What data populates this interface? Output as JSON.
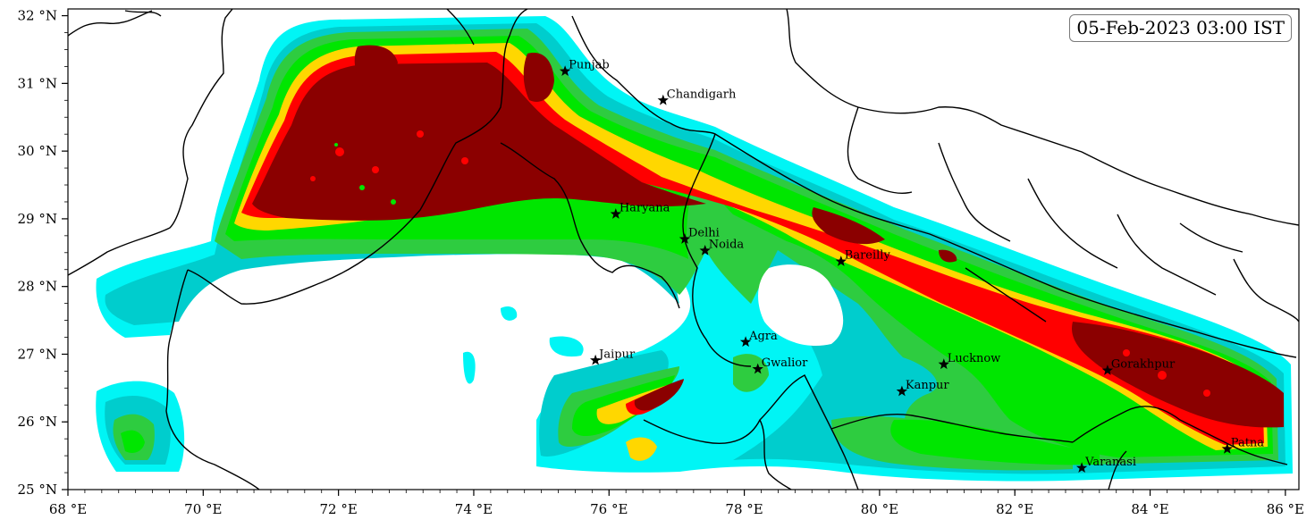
{
  "map": {
    "timestamp": "05-Feb-2023 03:00 IST",
    "extent": {
      "lon_min": 68.0,
      "lon_max": 86.2,
      "lat_min": 25.0,
      "lat_max": 32.1
    },
    "x_ticks": [
      {
        "value": 68,
        "label": "68 °E"
      },
      {
        "value": 70,
        "label": "70 °E"
      },
      {
        "value": 72,
        "label": "72 °E"
      },
      {
        "value": 74,
        "label": "74 °E"
      },
      {
        "value": 76,
        "label": "76 °E"
      },
      {
        "value": 78,
        "label": "78 °E"
      },
      {
        "value": 80,
        "label": "80 °E"
      },
      {
        "value": 82,
        "label": "82 °E"
      },
      {
        "value": 84,
        "label": "84 °E"
      },
      {
        "value": 86,
        "label": "86 °E"
      }
    ],
    "y_ticks": [
      {
        "value": 25,
        "label": "25 °N"
      },
      {
        "value": 26,
        "label": "26 °N"
      },
      {
        "value": 27,
        "label": "27 °N"
      },
      {
        "value": 28,
        "label": "28 °N"
      },
      {
        "value": 29,
        "label": "29 °N"
      },
      {
        "value": 30,
        "label": "30 °N"
      },
      {
        "value": 31,
        "label": "31 °N"
      },
      {
        "value": 32,
        "label": "32 °N"
      }
    ],
    "shade_colors": {
      "level1": "#00f5f5",
      "level2": "#00cdcd",
      "level3": "#2ecc40",
      "level4": "#00e600",
      "level5": "#ffd700",
      "level6": "#ff0000",
      "level7": "#8b0000"
    },
    "cities": [
      {
        "name": "Punjab",
        "lon": 75.35,
        "lat": 31.18
      },
      {
        "name": "Chandigarh",
        "lon": 76.8,
        "lat": 30.75
      },
      {
        "name": "Haryana",
        "lon": 76.1,
        "lat": 29.07
      },
      {
        "name": "Delhi",
        "lon": 77.12,
        "lat": 28.7
      },
      {
        "name": "Noida",
        "lon": 77.42,
        "lat": 28.53
      },
      {
        "name": "Bareilly",
        "lon": 79.43,
        "lat": 28.37
      },
      {
        "name": "Agra",
        "lon": 78.02,
        "lat": 27.18
      },
      {
        "name": "Jaipur",
        "lon": 75.8,
        "lat": 26.91
      },
      {
        "name": "Gwalior",
        "lon": 78.2,
        "lat": 26.78
      },
      {
        "name": "Lucknow",
        "lon": 80.95,
        "lat": 26.85
      },
      {
        "name": "Kanpur",
        "lon": 80.33,
        "lat": 26.45
      },
      {
        "name": "Gorakhpur",
        "lon": 83.37,
        "lat": 26.76
      },
      {
        "name": "Patna",
        "lon": 85.14,
        "lat": 25.6
      },
      {
        "name": "Varanasi",
        "lon": 82.99,
        "lat": 25.32
      }
    ]
  }
}
